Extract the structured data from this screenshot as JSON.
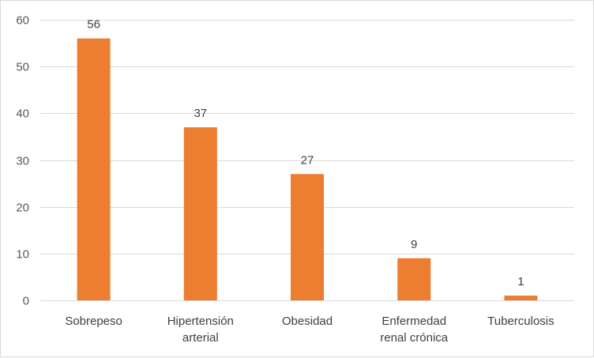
{
  "chart_data": {
    "type": "bar",
    "categories": [
      [
        "Sobrepeso"
      ],
      [
        "Hipertensión",
        "arterial"
      ],
      [
        "Obesidad"
      ],
      [
        "Enfermedad",
        "renal crónica"
      ],
      [
        "Tuberculosis"
      ]
    ],
    "values": [
      56,
      37,
      27,
      9,
      1
    ],
    "title": "",
    "xlabel": "",
    "ylabel": "",
    "ylim": [
      0,
      60
    ],
    "yticks": [
      0,
      10,
      20,
      30,
      40,
      50,
      60
    ],
    "grid": true,
    "legend": "none",
    "bar_color": "#ED7D31",
    "data_labels": true
  }
}
